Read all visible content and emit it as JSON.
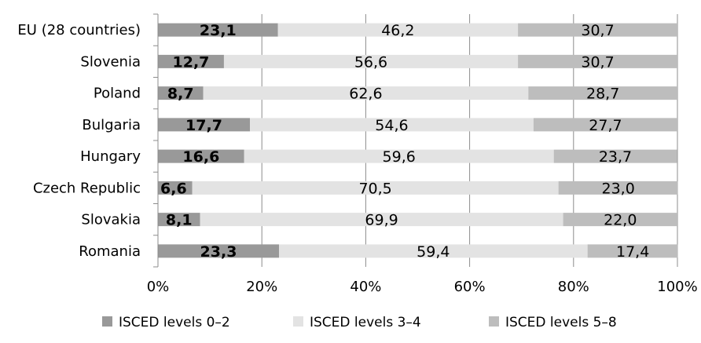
{
  "chart_data": {
    "type": "bar",
    "orientation": "horizontal",
    "stacked": "percent",
    "title": "",
    "xlabel": "",
    "ylabel": "",
    "categories": [
      "EU (28 countries)",
      "Slovenia",
      "Poland",
      "Bulgaria",
      "Hungary",
      "Czech Republic",
      "Slovakia",
      "Romania"
    ],
    "series": [
      {
        "name": "ISCED levels 0–2",
        "color": "#999999",
        "values": [
          23.1,
          12.7,
          8.7,
          17.7,
          16.6,
          6.6,
          8.1,
          23.3
        ],
        "labels": [
          "23,1",
          "12,7",
          "8,7",
          "17,7",
          "16,6",
          "6,6",
          "8,1",
          "23,3"
        ],
        "bold": true
      },
      {
        "name": "ISCED levels 3–4",
        "color": "#e3e3e3",
        "values": [
          46.2,
          56.6,
          62.6,
          54.6,
          59.6,
          70.5,
          69.9,
          59.4
        ],
        "labels": [
          "46,2",
          "56,6",
          "62,6",
          "54,6",
          "59,6",
          "70,5",
          "69,9",
          "59,4"
        ],
        "bold": false
      },
      {
        "name": "ISCED levels 5–8",
        "color": "#bdbdbd",
        "values": [
          30.7,
          30.7,
          28.7,
          27.7,
          23.7,
          23.0,
          22.0,
          17.4
        ],
        "labels": [
          "30,7",
          "30,7",
          "28,7",
          "27,7",
          "23,7",
          "23,0",
          "22,0",
          "17,4"
        ],
        "bold": false
      }
    ],
    "xlim": [
      0,
      100
    ],
    "xticks": [
      0,
      20,
      40,
      60,
      80,
      100
    ],
    "xtick_labels": [
      "0%",
      "20%",
      "40%",
      "60%",
      "80%",
      "100%"
    ],
    "grid": true,
    "legend_position": "bottom"
  }
}
